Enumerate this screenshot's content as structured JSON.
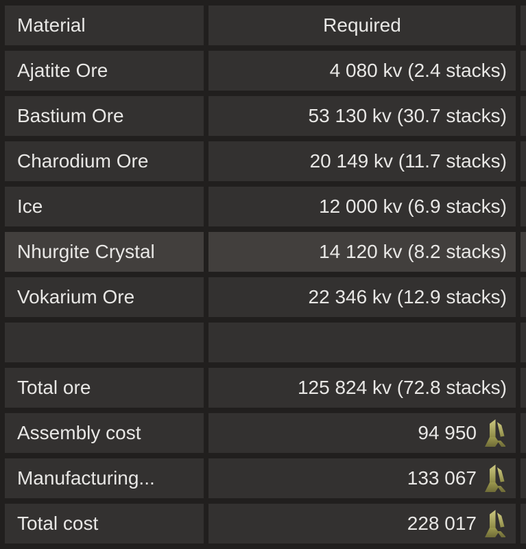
{
  "header": {
    "material": "Material",
    "required": "Required"
  },
  "rows": [
    {
      "id": "ajatite-ore",
      "material": "Ajatite Ore",
      "required": "4 080 kv (2.4 stacks)",
      "highlighted": false,
      "empty": false,
      "icon": null
    },
    {
      "id": "bastium-ore",
      "material": "Bastium Ore",
      "required": "53 130 kv (30.7 stacks)",
      "highlighted": false,
      "empty": false,
      "icon": null
    },
    {
      "id": "charodium-ore",
      "material": "Charodium Ore",
      "required": "20 149 kv (11.7 stacks)",
      "highlighted": false,
      "empty": false,
      "icon": null
    },
    {
      "id": "ice",
      "material": "Ice",
      "required": "12 000 kv (6.9 stacks)",
      "highlighted": false,
      "empty": false,
      "icon": null
    },
    {
      "id": "nhurgite-crystal",
      "material": "Nhurgite Crystal",
      "required": "14 120 kv (8.2 stacks)",
      "highlighted": true,
      "empty": false,
      "icon": null
    },
    {
      "id": "vokarium-ore",
      "material": "Vokarium Ore",
      "required": "22 346 kv (12.9 stacks)",
      "highlighted": false,
      "empty": false,
      "icon": null
    },
    {
      "id": "spacer",
      "material": "",
      "required": "",
      "highlighted": false,
      "empty": true,
      "icon": null
    },
    {
      "id": "total-ore",
      "material": "Total ore",
      "required": "125 824 kv (72.8 stacks)",
      "highlighted": false,
      "empty": false,
      "icon": null
    },
    {
      "id": "assembly-cost",
      "material": "Assembly cost",
      "required": "94 950",
      "highlighted": false,
      "empty": false,
      "icon": "credits-icon"
    },
    {
      "id": "manufacturing-cost",
      "material": "Manufacturing...",
      "required": "133 067",
      "highlighted": false,
      "empty": false,
      "icon": "credits-icon"
    },
    {
      "id": "total-cost",
      "material": "Total cost",
      "required": "228 017",
      "highlighted": false,
      "empty": false,
      "icon": "credits-icon"
    }
  ],
  "colors": {
    "background": "#211f1e",
    "cell": "#333130",
    "row_highlight": "#423f3d",
    "text": "#e8e7e5",
    "credits_gold_light": "#cdc981",
    "credits_gold": "#9c994e",
    "credits_gold_dark": "#6e6b37"
  }
}
